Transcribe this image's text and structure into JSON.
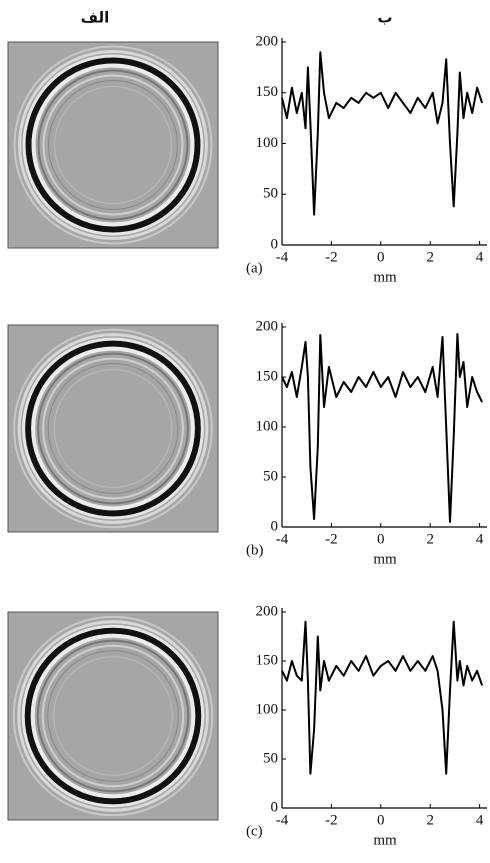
{
  "headers": {
    "left": "الف",
    "right": "ب"
  },
  "chart_data": [
    {
      "type": "line",
      "panel_label": "(a)",
      "xlabel": "mm",
      "color": "#000000",
      "xlim": [
        -4,
        4.3
      ],
      "ylim": [
        0,
        200
      ],
      "xticks": [
        -4,
        -2,
        0,
        2,
        4
      ],
      "yticks": [
        0,
        50,
        100,
        150,
        200
      ],
      "x": [
        -4,
        -3.8,
        -3.6,
        -3.4,
        -3.2,
        -3.05,
        -2.95,
        -2.85,
        -2.7,
        -2.55,
        -2.45,
        -2.3,
        -2.1,
        -1.8,
        -1.5,
        -1.2,
        -0.9,
        -0.6,
        -0.3,
        0,
        0.3,
        0.6,
        0.9,
        1.2,
        1.5,
        1.8,
        2.1,
        2.3,
        2.5,
        2.65,
        2.8,
        2.95,
        3.1,
        3.2,
        3.35,
        3.5,
        3.7,
        3.9,
        4.1
      ],
      "values": [
        145,
        125,
        155,
        130,
        150,
        115,
        175,
        120,
        30,
        110,
        190,
        150,
        125,
        140,
        135,
        145,
        140,
        150,
        145,
        150,
        135,
        150,
        140,
        130,
        145,
        135,
        150,
        120,
        140,
        183,
        100,
        38,
        110,
        170,
        125,
        150,
        130,
        155,
        140
      ]
    },
    {
      "type": "line",
      "panel_label": "(b)",
      "xlabel": "mm",
      "color": "#000000",
      "xlim": [
        -4,
        4.3
      ],
      "ylim": [
        0,
        200
      ],
      "xticks": [
        -4,
        -2,
        0,
        2,
        4
      ],
      "yticks": [
        0,
        50,
        100,
        150,
        200
      ],
      "x": [
        -4,
        -3.8,
        -3.6,
        -3.4,
        -3.2,
        -3.05,
        -2.95,
        -2.85,
        -2.7,
        -2.55,
        -2.45,
        -2.3,
        -2.1,
        -1.8,
        -1.5,
        -1.2,
        -0.9,
        -0.6,
        -0.3,
        0,
        0.3,
        0.6,
        0.9,
        1.2,
        1.5,
        1.8,
        2.1,
        2.3,
        2.5,
        2.65,
        2.8,
        2.95,
        3.1,
        3.2,
        3.35,
        3.5,
        3.7,
        3.9,
        4.1
      ],
      "values": [
        150,
        140,
        155,
        130,
        160,
        185,
        150,
        60,
        8,
        80,
        192,
        120,
        160,
        130,
        145,
        135,
        150,
        140,
        155,
        140,
        150,
        130,
        155,
        140,
        150,
        135,
        160,
        130,
        190,
        100,
        5,
        90,
        193,
        150,
        165,
        120,
        150,
        135,
        125
      ]
    },
    {
      "type": "line",
      "panel_label": "(c)",
      "xlabel": "mm",
      "color": "#000000",
      "xlim": [
        -4,
        4.3
      ],
      "ylim": [
        0,
        200
      ],
      "xticks": [
        -4,
        -2,
        0,
        2,
        4
      ],
      "yticks": [
        0,
        50,
        100,
        150,
        200
      ],
      "x": [
        -4,
        -3.8,
        -3.6,
        -3.4,
        -3.2,
        -3.05,
        -2.95,
        -2.85,
        -2.7,
        -2.55,
        -2.45,
        -2.3,
        -2.1,
        -1.8,
        -1.5,
        -1.2,
        -0.9,
        -0.6,
        -0.3,
        0,
        0.3,
        0.6,
        0.9,
        1.2,
        1.5,
        1.8,
        2.1,
        2.3,
        2.5,
        2.65,
        2.8,
        2.95,
        3.1,
        3.2,
        3.35,
        3.5,
        3.7,
        3.9,
        4.1
      ],
      "values": [
        140,
        130,
        150,
        135,
        130,
        190,
        130,
        35,
        80,
        175,
        120,
        150,
        130,
        145,
        135,
        150,
        140,
        155,
        135,
        145,
        150,
        140,
        155,
        140,
        150,
        140,
        155,
        140,
        100,
        35,
        120,
        190,
        130,
        150,
        125,
        145,
        130,
        140,
        125
      ]
    }
  ]
}
